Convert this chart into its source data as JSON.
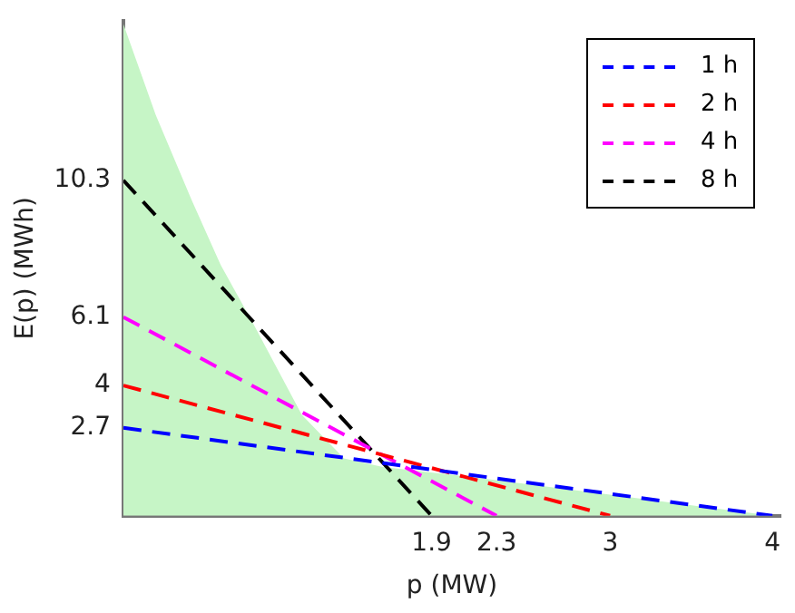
{
  "chart_data": {
    "type": "line",
    "xlabel": "p (MW)",
    "ylabel": "E(p) (MWh)",
    "xlim": [
      0,
      4.05
    ],
    "ylim": [
      0,
      15.2
    ],
    "xticks": [
      1.9,
      2.3,
      3,
      4
    ],
    "yticks": [
      2.7,
      4,
      6.1,
      10.3
    ],
    "grid": false,
    "legend": "top right",
    "marker": "none",
    "line_style": "dashed",
    "series": [
      {
        "type": "area",
        "color": "#c6f5c6",
        "x": [
          0,
          0.2,
          0.42,
          0.6,
          0.8,
          1.1,
          1.36,
          1.6,
          2.13,
          3,
          4
        ],
        "values": [
          15.1,
          12.3,
          9.7,
          7.7,
          5.9,
          3.1,
          1.76,
          1.5,
          1.2,
          0.65,
          0
        ]
      },
      {
        "name": "1 h",
        "color": "#0000ff",
        "x": [
          0,
          4
        ],
        "values": [
          2.7,
          0
        ]
      },
      {
        "name": "2 h",
        "color": "#ff0000",
        "x": [
          0,
          3
        ],
        "values": [
          4,
          0
        ]
      },
      {
        "name": "4 h",
        "color": "#ff00ff",
        "x": [
          0,
          2.3
        ],
        "values": [
          6.1,
          0
        ]
      },
      {
        "name": "8 h",
        "color": "#000000",
        "x": [
          0,
          1.9
        ],
        "values": [
          10.3,
          0
        ]
      }
    ]
  }
}
